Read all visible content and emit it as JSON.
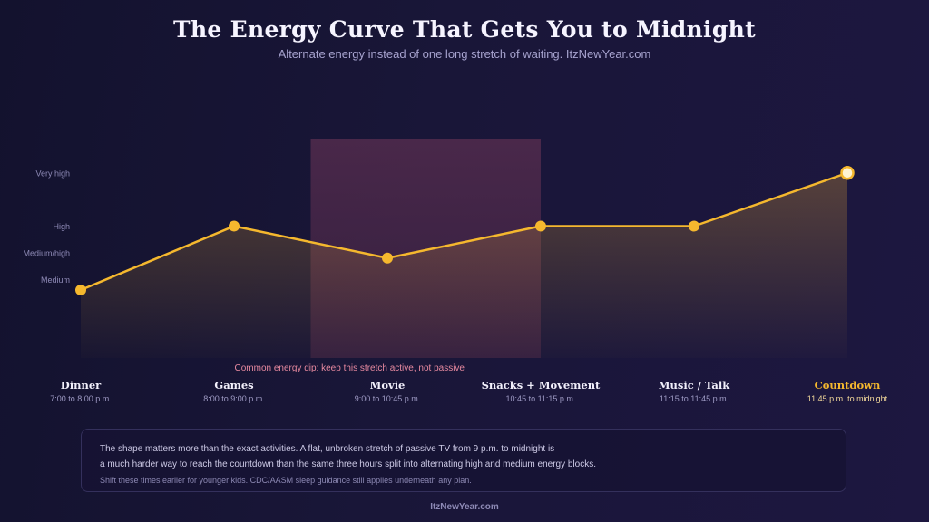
{
  "header": {
    "title": "The Energy Curve That Gets You to Midnight",
    "subtitle": "Alternate energy instead of one long stretch of waiting. ItzNewYear.com"
  },
  "chart_data": {
    "type": "line",
    "levels": [
      "Medium",
      "Medium/high",
      "High",
      "Very high"
    ],
    "level_values": [
      1,
      1.5,
      2,
      3
    ],
    "ylim": [
      0.8,
      3.2
    ],
    "points": [
      {
        "name": "Dinner",
        "time": "7:00 to 8:00 p.m.",
        "value": 0.8
      },
      {
        "name": "Games",
        "time": "8:00 to 9:00 p.m.",
        "value": 2.0
      },
      {
        "name": "Movie",
        "time": "9:00 to 10:45 p.m.",
        "value": 1.4
      },
      {
        "name": "Snacks + Movement",
        "time": "10:45 to 11:15 p.m.",
        "value": 2.0
      },
      {
        "name": "Music / Talk",
        "time": "11:15 to 11:45 p.m.",
        "value": 2.0
      },
      {
        "name": "Countdown",
        "time": "11:45 p.m. to midnight",
        "value": 3.0
      }
    ],
    "highlight": {
      "segment": "Movie",
      "label": "Common energy dip: keep this stretch active, not passive"
    },
    "colors": {
      "line": "#f5b82e",
      "marker": "#f5b82e",
      "final_marker_fill": "#fff4d2",
      "highlight_band": "#5a2e50",
      "highlight_text": "#e88aa0",
      "accent_label": "#f5b82e"
    },
    "grid": false
  },
  "note": {
    "line1": "The shape matters more than the exact activities. A flat, unbroken stretch of passive TV from 9 p.m. to midnight is",
    "line2": "a much harder way to reach the countdown than the same three hours split into alternating high and medium energy blocks.",
    "small": "Shift these times earlier for younger kids. CDC/AASM sleep guidance still applies underneath any plan."
  },
  "footer": {
    "text": "ItzNewYear.com"
  }
}
